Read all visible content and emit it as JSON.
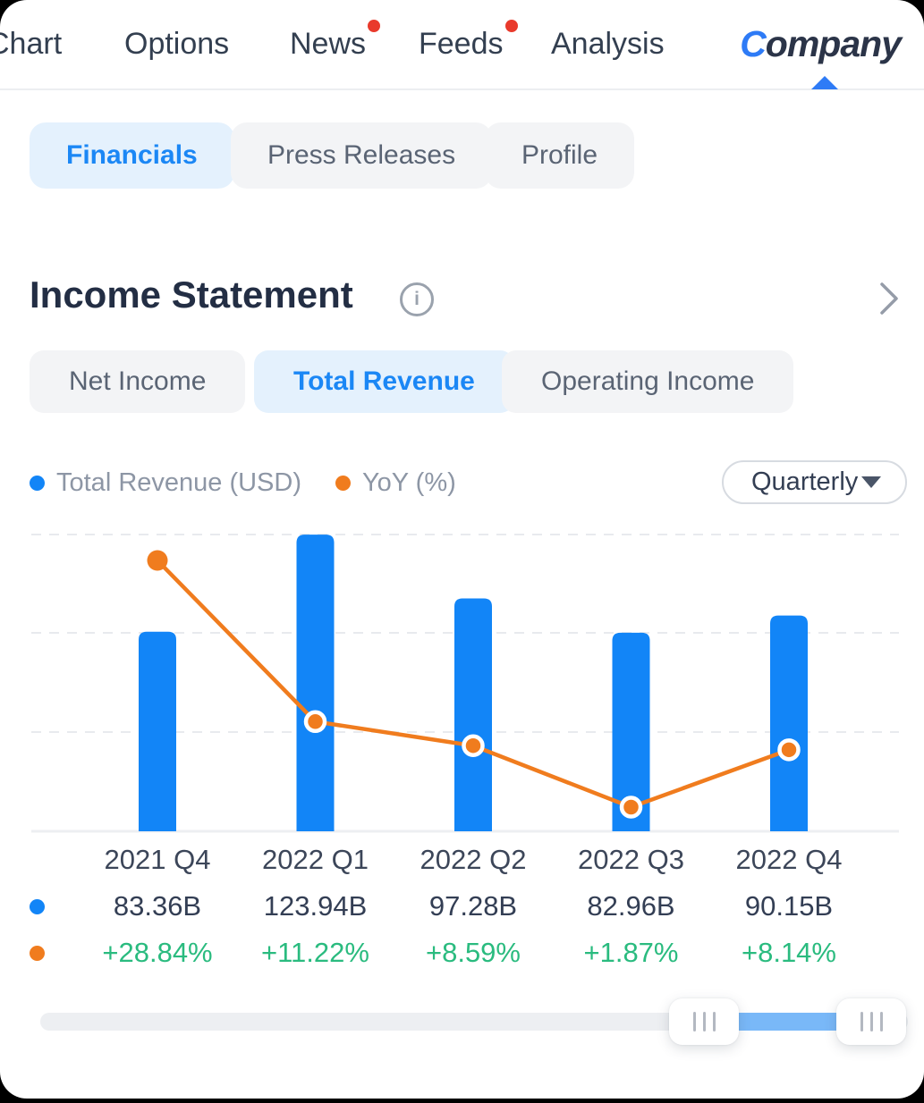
{
  "colors": {
    "accent_blue": "#1b87f5",
    "bar_blue": "#1285f7",
    "line_orange": "#f07c1e",
    "positive_green": "#2abb7f",
    "notification_red": "#e93a2c",
    "nav_text": "#333f50",
    "muted_text": "#8d96a5"
  },
  "nav": {
    "items": [
      {
        "label": "Chart",
        "badge": false
      },
      {
        "label": "Options",
        "badge": false
      },
      {
        "label": "News",
        "badge": true
      },
      {
        "label": "Feeds",
        "badge": true
      },
      {
        "label": "Analysis",
        "badge": false
      }
    ],
    "brand": {
      "first_letter": "C",
      "rest": "ompany",
      "active": true
    }
  },
  "tabs": [
    {
      "label": "Financials",
      "active": true
    },
    {
      "label": "Press Releases",
      "active": false
    },
    {
      "label": "Profile",
      "active": false
    }
  ],
  "section": {
    "title": "Income Statement"
  },
  "subtabs": [
    {
      "label": "Net Income",
      "active": false
    },
    {
      "label": "Total Revenue",
      "active": true
    },
    {
      "label": "Operating Income",
      "active": false
    }
  ],
  "legend": [
    {
      "label": "Total Revenue (USD)",
      "color": "#1285f7"
    },
    {
      "label": "YoY (%)",
      "color": "#f07c1e"
    }
  ],
  "period_selector": {
    "value": "Quarterly"
  },
  "chart_data": {
    "type": "bar",
    "title": "Income Statement - Total Revenue (Quarterly)",
    "categories": [
      "2021 Q4",
      "2022 Q1",
      "2022 Q2",
      "2022 Q3",
      "2022 Q4"
    ],
    "series": [
      {
        "name": "Total Revenue (USD)",
        "type": "bar",
        "color": "#1285f7",
        "values_billions": [
          83.36,
          123.94,
          97.28,
          82.96,
          90.15
        ],
        "labels": [
          "83.36B",
          "123.94B",
          "97.28B",
          "82.96B",
          "90.15B"
        ]
      },
      {
        "name": "YoY (%)",
        "type": "line",
        "color": "#f07c1e",
        "values_percent": [
          28.84,
          11.22,
          8.59,
          1.87,
          8.14
        ],
        "labels": [
          "+28.84%",
          "+11.22%",
          "+8.59%",
          "+1.87%",
          "+8.14%"
        ]
      }
    ],
    "ylabel": "",
    "xlabel": "",
    "bar_axis_range_billions": [
      0,
      124
    ],
    "grid": "horizontal-dashed",
    "legend_position": "top-left"
  },
  "slider": {
    "handles": 2,
    "selected_range_position": "right"
  }
}
